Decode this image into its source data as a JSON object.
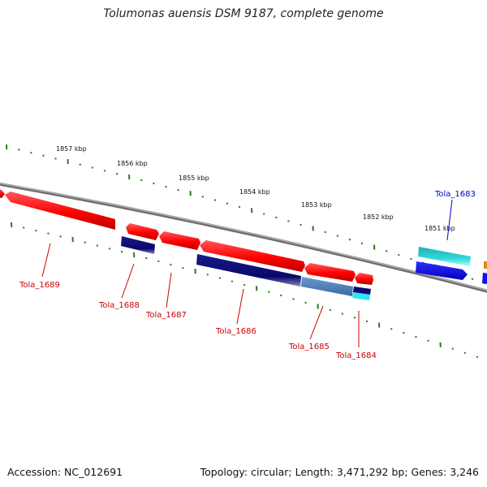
{
  "title": "Tolumonas auensis DSM 9187, complete genome",
  "footer": {
    "accession": "Accession: NC_012691",
    "summary": "Topology: circular; Length: 3,471,292 bp; Genes: 3,246"
  },
  "ticks": [
    "1857 kbp",
    "1856 kbp",
    "1855 kbp",
    "1854 kbp",
    "1853 kbp",
    "1852 kbp",
    "1851 kbp"
  ],
  "genes": [
    {
      "label": "Tola_1689",
      "color": "#cc0000"
    },
    {
      "label": "Tola_1688",
      "color": "#cc0000"
    },
    {
      "label": "Tola_1687",
      "color": "#cc0000"
    },
    {
      "label": "Tola_1686",
      "color": "#cc0000"
    },
    {
      "label": "Tola_1685",
      "color": "#cc0000"
    },
    {
      "label": "Tola_1684",
      "color": "#cc0000"
    },
    {
      "label": "Tola_1683",
      "color": "#0000cc"
    }
  ],
  "colors": {
    "backbone": "#7a7a7a",
    "tick": "#2a7a1a",
    "forward_gene": "#ff0000",
    "reverse_gene_navy": "#0a0a6e",
    "reverse_gene_steel": "#4a7bb5",
    "cyan_gene": "#22c4c4",
    "blue_gene": "#1010f0"
  }
}
